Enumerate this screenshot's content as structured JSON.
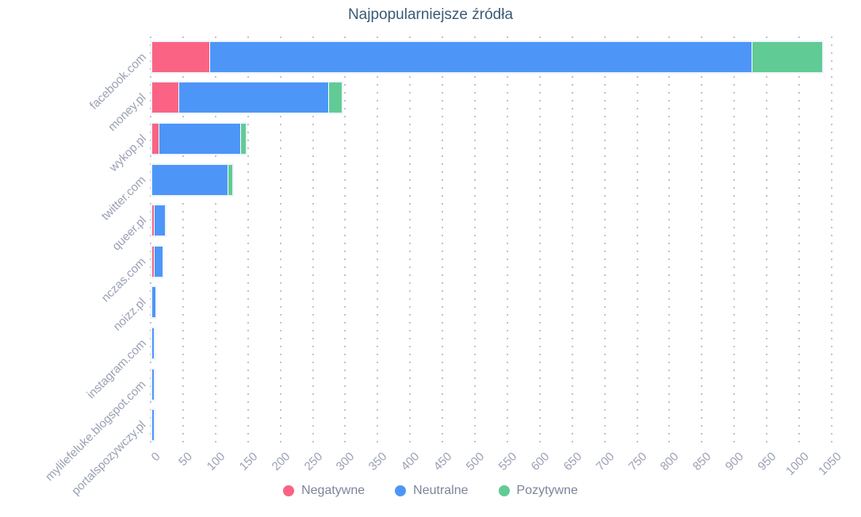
{
  "title": "Najpopularniejsze źródła",
  "colors": {
    "negative": "#fa6384",
    "neutral": "#4d96f8",
    "positive": "#61cb96",
    "title_text": "#3b5a76",
    "axis_text": "#9aa0b4",
    "legend_text": "#7d849b",
    "grid_dot": "#c0c3cd",
    "background": "#ffffff"
  },
  "chart_data": {
    "type": "bar",
    "orientation": "horizontal",
    "stacked": true,
    "title": "Najpopularniejsze źródła",
    "categories": [
      "facebook.com",
      "money.pl",
      "wykop.pl",
      "twitter.com",
      "queer.pl",
      "nczas.com",
      "noizz.pl",
      "instagram.com",
      "mylilefeluke.blogspot.com",
      "portalspozywczy.pl"
    ],
    "series": [
      {
        "name": "Negatywne",
        "color": "#fa6384",
        "values": [
          88,
          40,
          10,
          0,
          2,
          2,
          0,
          0,
          0,
          0
        ]
      },
      {
        "name": "Neutralne",
        "color": "#4d96f8",
        "values": [
          835,
          230,
          125,
          116,
          16,
          13,
          5,
          3,
          3,
          3
        ]
      },
      {
        "name": "Pozytywne",
        "color": "#61cb96",
        "values": [
          108,
          20,
          7,
          6,
          0,
          0,
          0,
          0,
          0,
          0
        ]
      }
    ],
    "totals": [
      1031,
      290,
      142,
      122,
      18,
      15,
      5,
      3,
      3,
      3
    ],
    "xlim": [
      0,
      1050
    ],
    "x_ticks": [
      0,
      50,
      100,
      150,
      200,
      250,
      300,
      350,
      400,
      450,
      500,
      550,
      600,
      650,
      700,
      750,
      800,
      850,
      900,
      950,
      1000,
      1050
    ],
    "xlabel": "",
    "ylabel": "",
    "grid": "dotted-vertical",
    "legend_position": "bottom",
    "tick_label_rotation": -45,
    "category_label_rotation": -45
  },
  "legend": {
    "items": [
      {
        "label": "Negatywne",
        "color": "#fa6384"
      },
      {
        "label": "Neutralne",
        "color": "#4d96f8"
      },
      {
        "label": "Pozytywne",
        "color": "#61cb96"
      }
    ]
  }
}
